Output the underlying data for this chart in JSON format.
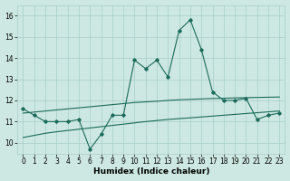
{
  "xlabel": "Humidex (Indice chaleur)",
  "x": [
    0,
    1,
    2,
    3,
    4,
    5,
    6,
    7,
    8,
    9,
    10,
    11,
    12,
    13,
    14,
    15,
    16,
    17,
    18,
    19,
    20,
    21,
    22,
    23
  ],
  "jagged": [
    11.6,
    11.3,
    11.0,
    11.0,
    11.0,
    11.1,
    9.7,
    10.4,
    11.3,
    11.3,
    13.9,
    13.5,
    13.9,
    13.1,
    15.3,
    15.8,
    14.4,
    12.4,
    12.0,
    12.0,
    12.1,
    11.1,
    11.3,
    11.4
  ],
  "upper_diag": [
    11.4,
    11.45,
    11.5,
    11.55,
    11.6,
    11.65,
    11.7,
    11.75,
    11.8,
    11.85,
    11.9,
    11.93,
    11.96,
    12.0,
    12.03,
    12.05,
    12.07,
    12.09,
    12.1,
    12.12,
    12.13,
    12.14,
    12.15,
    12.16
  ],
  "lower_diag": [
    10.25,
    10.35,
    10.45,
    10.52,
    10.58,
    10.64,
    10.7,
    10.76,
    10.82,
    10.88,
    10.94,
    11.0,
    11.05,
    11.1,
    11.14,
    11.18,
    11.22,
    11.26,
    11.3,
    11.34,
    11.38,
    11.42,
    11.46,
    11.5
  ],
  "line_color": "#1a6b5a",
  "bg_color": "#cde8e2",
  "grid_color": "#a8cec8",
  "ylim": [
    9.5,
    16.5
  ],
  "xlim": [
    -0.5,
    23.5
  ],
  "yticks": [
    10,
    11,
    12,
    13,
    14,
    15,
    16
  ],
  "xticks": [
    0,
    1,
    2,
    3,
    4,
    5,
    6,
    7,
    8,
    9,
    10,
    11,
    12,
    13,
    14,
    15,
    16,
    17,
    18,
    19,
    20,
    21,
    22,
    23
  ],
  "tick_fontsize": 5.5,
  "xlabel_fontsize": 6.5
}
